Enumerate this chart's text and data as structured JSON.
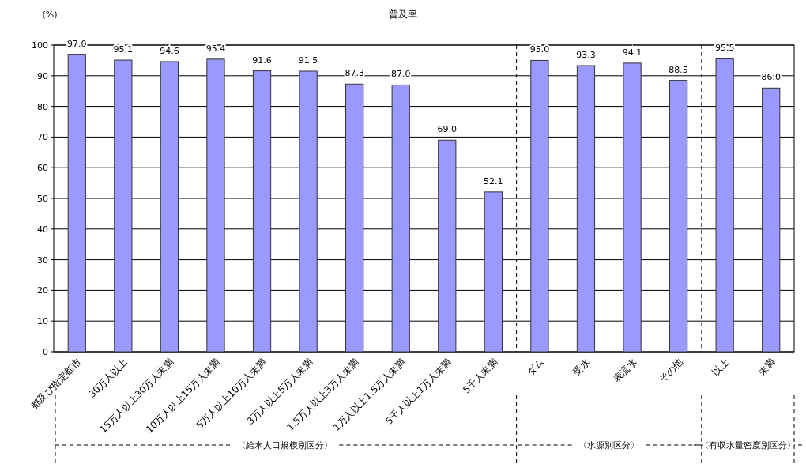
{
  "chart_data": {
    "type": "bar",
    "title": "普及率",
    "ylabel": "(%)",
    "categories": [
      "都及び指定都市",
      "30万人以上",
      "15万人以上30万人未満",
      "10万人以上15万人未満",
      "5万人以上10万人未満",
      "3万人以上5万人未満",
      "1.5万人以上3万人未満",
      "1万人以上1.5万人未満",
      "5千人以上1万人未満",
      "5千人未満",
      "ダム",
      "受水",
      "表流水",
      "その他",
      "以上",
      "未満"
    ],
    "values": [
      97.0,
      95.1,
      94.6,
      95.4,
      91.6,
      91.5,
      87.3,
      87.0,
      69.0,
      52.1,
      95.0,
      93.3,
      94.1,
      88.5,
      95.5,
      86.0
    ],
    "color": "#9999ff",
    "ylim": [
      0,
      100
    ],
    "yticks": [
      0,
      10,
      20,
      30,
      40,
      50,
      60,
      70,
      80,
      90,
      100
    ],
    "value_labels": [
      "97.0",
      "95.1",
      "94.6",
      "95.4",
      "91.6",
      "91.5",
      "87.3",
      "87.0",
      "69.0",
      "52.1",
      "95.0",
      "93.3",
      "94.1",
      "88.5",
      "95.5",
      "86.0"
    ],
    "grid": "y",
    "annotations": [
      "〈給水人口規模別区分〉",
      "〈水源別区分〉",
      "〈有収水量密度別区分〉"
    ]
  }
}
